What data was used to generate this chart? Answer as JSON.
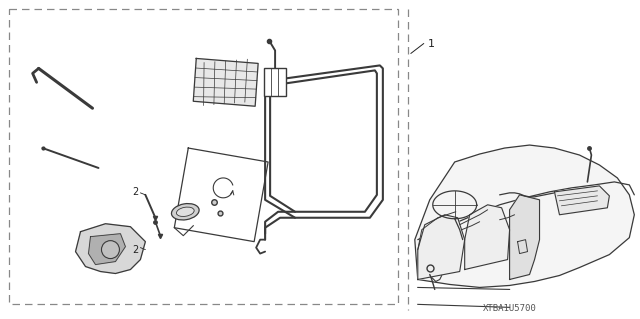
{
  "bg_color": "#ffffff",
  "fig_width": 6.4,
  "fig_height": 3.19,
  "dpi": 100,
  "line_color": "#3a3a3a",
  "dashed_color": "#888888",
  "font_color": "#222222",
  "watermark": "XTBA1U5700",
  "label_1": "1",
  "label_2": "2"
}
